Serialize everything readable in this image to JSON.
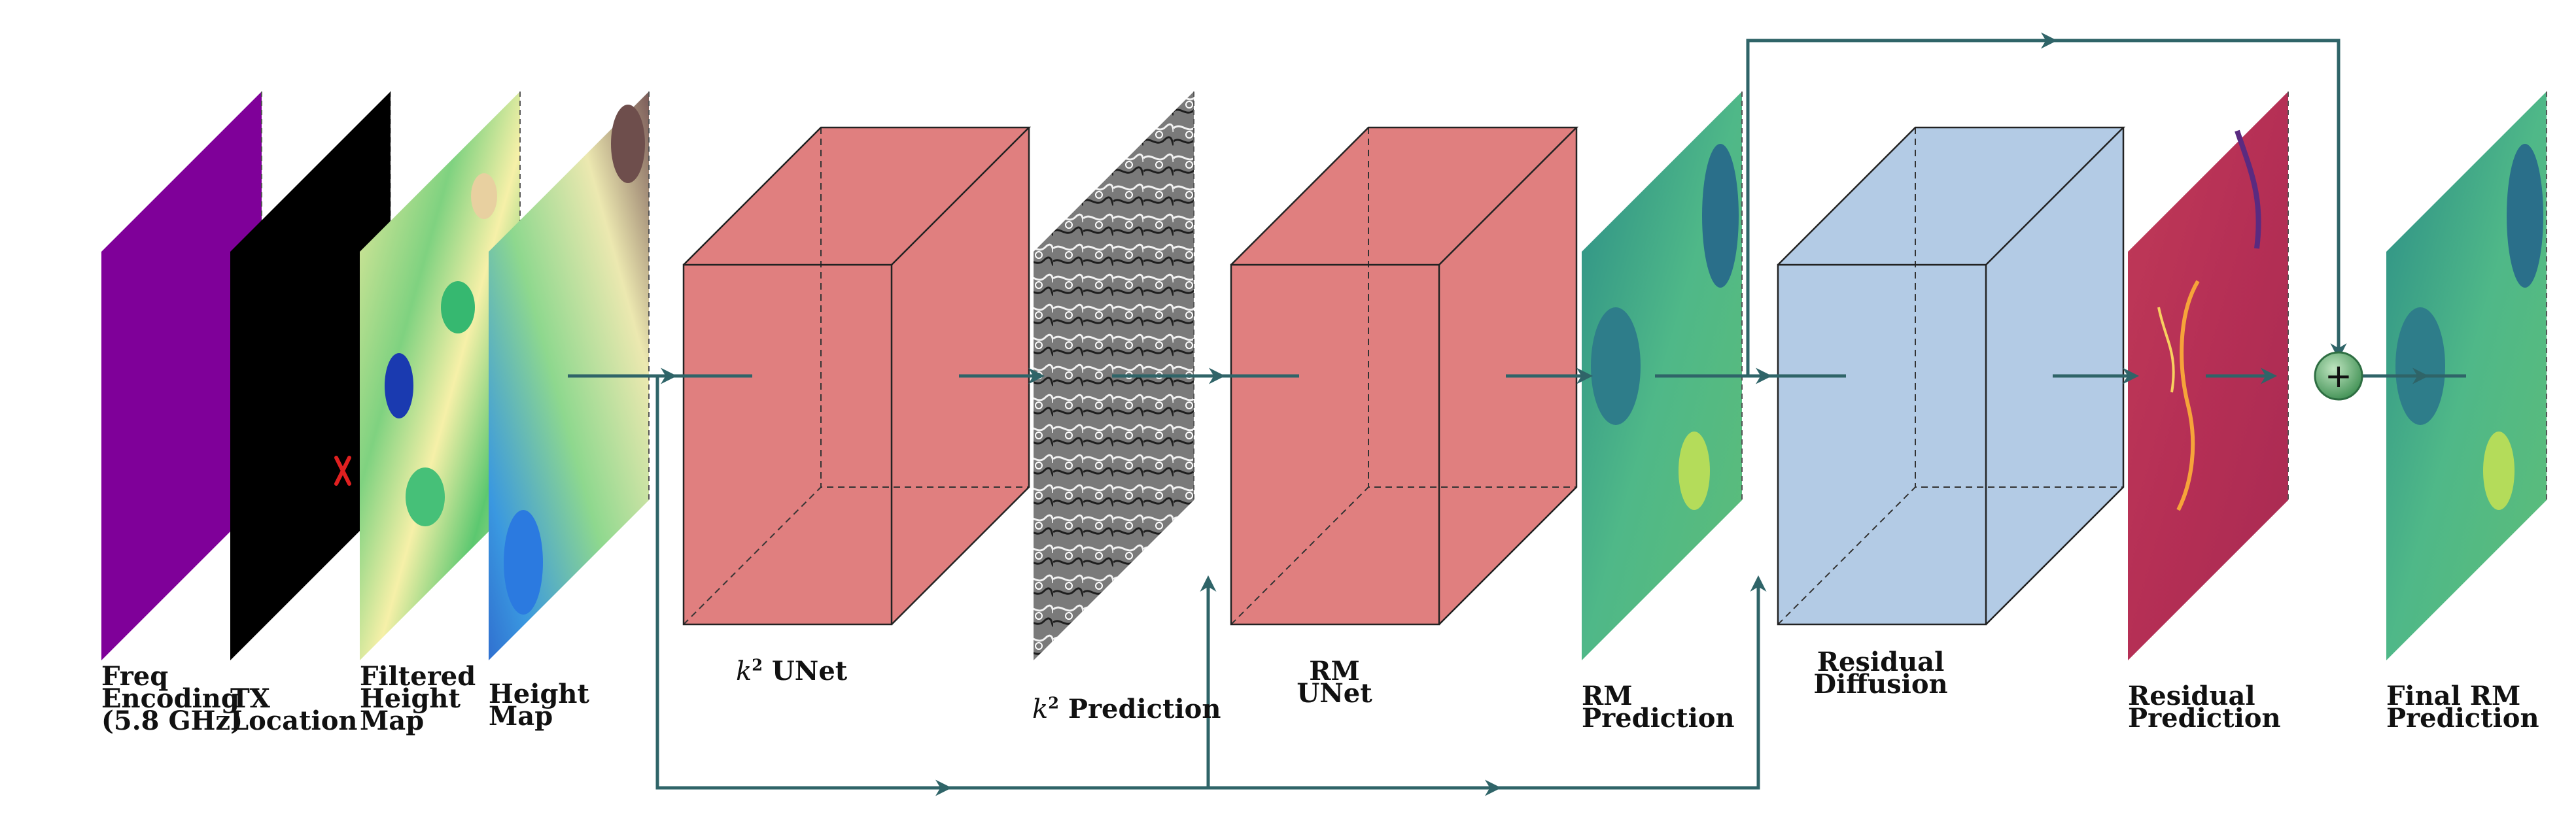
{
  "labels": {
    "freq": "Freq\nEncoding\n(5.8 GHz)",
    "tx": "TX\nLocation",
    "filtered_height": "Filtered\nHeight\nMap",
    "height": "Height\nMap",
    "k2_unet": " UNet",
    "k2_prediction": " Prediction",
    "k_symbol": "k",
    "k_exp": "2",
    "rm_unet": "RM\nUNet",
    "rm_prediction": "RM\nPrediction",
    "residual_diffusion": "Residual\nDiffusion",
    "residual_prediction": "Residual\nPrediction",
    "final_rm": "Final RM\nPrediction"
  },
  "sum_symbol": "+",
  "colors": {
    "arrow": "#2f6468",
    "unet_block": "#e07f7f",
    "diffusion_block": "#b3cbe5",
    "freq_plane": "#7f0099",
    "tx_plane": "#000000",
    "tx_marker": "#e02020",
    "sum_node": "#4aa060"
  }
}
